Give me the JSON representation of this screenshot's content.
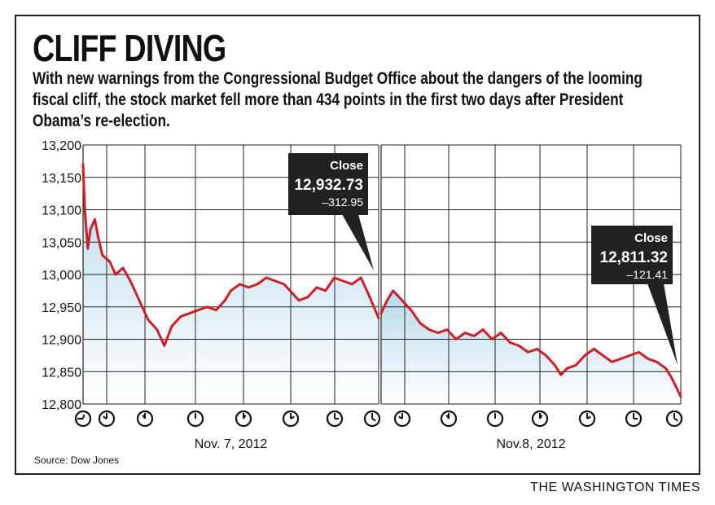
{
  "title": "CLIFF DIVING",
  "subtitle": "With new warnings from the Congressional Budget Office about the dangers of the looming fiscal cliff, the stock market fell more than 434 points in the first two days after President Obama’s re-election.",
  "source": "Source: Dow Jones",
  "credit": "THE WASHINGTON TIMES",
  "colors": {
    "line": "#cc1f26",
    "fill_top": "#b7d9ea",
    "callout": "#222222",
    "grid": "#222222"
  },
  "chart_data": [
    {
      "type": "area",
      "day_label": "Nov. 7, 2012",
      "ylim": [
        12800,
        13200
      ],
      "yticks": [
        "12,800",
        "12,850",
        "12,900",
        "12,950",
        "13,000",
        "13,050",
        "13,100",
        "13,150",
        "13,200"
      ],
      "x_unit": "trading-session progress (0 = open, 1 = close)",
      "clock_icons": [
        "clock-9-30-icon",
        "clock-10-icon",
        "clock-11-icon",
        "clock-12-icon",
        "clock-1-icon",
        "clock-2-icon",
        "clock-3-icon",
        "clock-4-icon"
      ],
      "points": [
        [
          0,
          13170
        ],
        [
          0.006,
          13100
        ],
        [
          0.016,
          13040
        ],
        [
          0.025,
          13070
        ],
        [
          0.04,
          13085
        ],
        [
          0.05,
          13060
        ],
        [
          0.065,
          13030
        ],
        [
          0.09,
          13020
        ],
        [
          0.11,
          13000
        ],
        [
          0.135,
          13010
        ],
        [
          0.16,
          12990
        ],
        [
          0.19,
          12960
        ],
        [
          0.22,
          12930
        ],
        [
          0.25,
          12915
        ],
        [
          0.275,
          12890
        ],
        [
          0.3,
          12920
        ],
        [
          0.33,
          12935
        ],
        [
          0.36,
          12940
        ],
        [
          0.39,
          12945
        ],
        [
          0.42,
          12950
        ],
        [
          0.45,
          12945
        ],
        [
          0.48,
          12960
        ],
        [
          0.5,
          12975
        ],
        [
          0.53,
          12985
        ],
        [
          0.56,
          12980
        ],
        [
          0.59,
          12985
        ],
        [
          0.62,
          12995
        ],
        [
          0.65,
          12990
        ],
        [
          0.68,
          12985
        ],
        [
          0.7,
          12975
        ],
        [
          0.73,
          12960
        ],
        [
          0.76,
          12965
        ],
        [
          0.79,
          12980
        ],
        [
          0.82,
          12975
        ],
        [
          0.85,
          12995
        ],
        [
          0.88,
          12990
        ],
        [
          0.91,
          12985
        ],
        [
          0.94,
          12995
        ],
        [
          0.965,
          12970
        ],
        [
          1,
          12932.73
        ]
      ],
      "callout": {
        "label": "Close",
        "value": "12,932.73",
        "change": "–312.95"
      }
    },
    {
      "type": "area",
      "day_label": "Nov.8, 2012",
      "ylim": [
        12800,
        13200
      ],
      "x_unit": "trading-session progress (0 = open, 1 = close)",
      "clock_icons": [
        "clock-10-icon",
        "clock-11-icon",
        "clock-12-icon",
        "clock-1-icon",
        "clock-2-icon",
        "clock-3-icon",
        "clock-4-icon"
      ],
      "points": [
        [
          0,
          12940
        ],
        [
          0.02,
          12960
        ],
        [
          0.04,
          12975
        ],
        [
          0.06,
          12965
        ],
        [
          0.08,
          12955
        ],
        [
          0.1,
          12945
        ],
        [
          0.13,
          12925
        ],
        [
          0.16,
          12915
        ],
        [
          0.19,
          12910
        ],
        [
          0.22,
          12915
        ],
        [
          0.25,
          12900
        ],
        [
          0.28,
          12910
        ],
        [
          0.31,
          12905
        ],
        [
          0.34,
          12915
        ],
        [
          0.37,
          12900
        ],
        [
          0.4,
          12910
        ],
        [
          0.43,
          12895
        ],
        [
          0.46,
          12890
        ],
        [
          0.49,
          12880
        ],
        [
          0.52,
          12885
        ],
        [
          0.55,
          12875
        ],
        [
          0.58,
          12860
        ],
        [
          0.6,
          12845
        ],
        [
          0.62,
          12855
        ],
        [
          0.65,
          12860
        ],
        [
          0.68,
          12875
        ],
        [
          0.71,
          12885
        ],
        [
          0.74,
          12875
        ],
        [
          0.77,
          12865
        ],
        [
          0.8,
          12870
        ],
        [
          0.83,
          12875
        ],
        [
          0.86,
          12880
        ],
        [
          0.89,
          12870
        ],
        [
          0.92,
          12865
        ],
        [
          0.95,
          12855
        ],
        [
          0.97,
          12840
        ],
        [
          1,
          12811.32
        ]
      ],
      "callout": {
        "label": "Close",
        "value": "12,811.32",
        "change": "–121.41"
      }
    }
  ]
}
